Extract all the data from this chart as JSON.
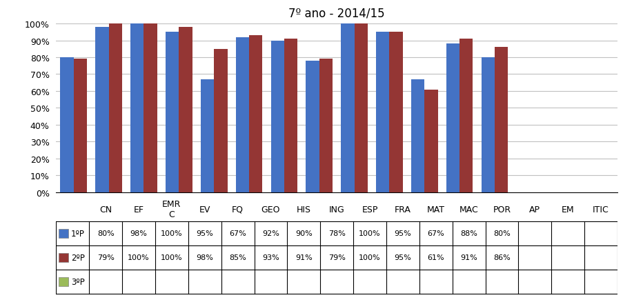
{
  "title": "7º ano - 2014/15",
  "categories": [
    "CN",
    "EF",
    "EMR\nC",
    "EV",
    "FQ",
    "GEO",
    "HIS",
    "ING",
    "ESP",
    "FRA",
    "MAT",
    "MAC",
    "POR",
    "AP",
    "EM",
    "ITIC"
  ],
  "series": [
    {
      "label": "1ºP",
      "color": "#4472C4",
      "values": [
        80,
        98,
        100,
        95,
        67,
        92,
        90,
        78,
        100,
        95,
        67,
        88,
        80,
        null,
        null,
        null
      ]
    },
    {
      "label": "2ºP",
      "color": "#943634",
      "values": [
        79,
        100,
        100,
        98,
        85,
        93,
        91,
        79,
        100,
        95,
        61,
        91,
        86,
        null,
        null,
        null
      ]
    },
    {
      "label": "3ºP",
      "color": "#9BBB59",
      "values": [
        null,
        null,
        null,
        null,
        null,
        null,
        null,
        null,
        null,
        null,
        null,
        null,
        null,
        null,
        null,
        null
      ]
    }
  ],
  "ylim": [
    0,
    100
  ],
  "yticks": [
    0,
    10,
    20,
    30,
    40,
    50,
    60,
    70,
    80,
    90,
    100
  ],
  "ytick_labels": [
    "0%",
    "10%",
    "20%",
    "30%",
    "40%",
    "50%",
    "60%",
    "70%",
    "80%",
    "90%",
    "100%"
  ],
  "background_color": "#FFFFFF",
  "grid_color": "#C0C0C0",
  "table_values_1P": [
    "80%",
    "98%",
    "100%",
    "95%",
    "67%",
    "92%",
    "90%",
    "78%",
    "100%",
    "95%",
    "67%",
    "88%",
    "80%",
    "",
    "",
    ""
  ],
  "table_values_2P": [
    "79%",
    "100%",
    "100%",
    "98%",
    "85%",
    "93%",
    "91%",
    "79%",
    "100%",
    "95%",
    "61%",
    "91%",
    "86%",
    "",
    "",
    ""
  ],
  "table_values_3P": [
    "",
    "",
    "",
    "",
    "",
    "",
    "",
    "",
    "",
    "",
    "",
    "",
    "",
    "",
    "",
    ""
  ],
  "bar_width": 0.38,
  "tick_fontsize": 9,
  "title_fontsize": 12
}
